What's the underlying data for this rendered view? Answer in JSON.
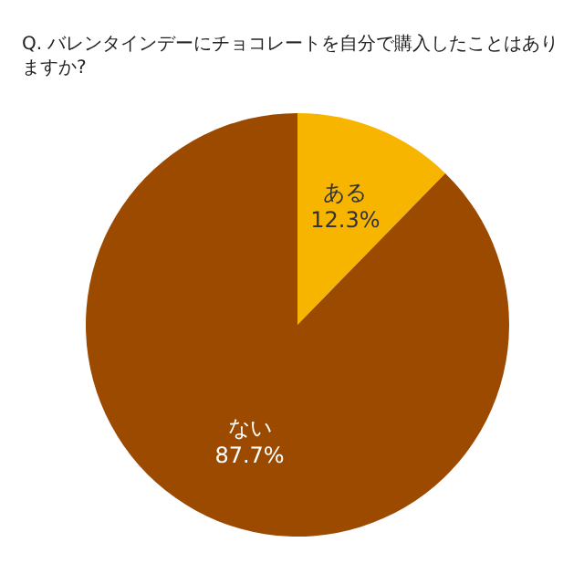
{
  "chart_data": {
    "type": "pie",
    "title": "Q. バレンタインデーにチョコレートを自分で購入したことはありますか?",
    "categories": [
      "ある",
      "ない"
    ],
    "values": [
      12.3,
      87.7
    ],
    "colors": [
      "#f7b500",
      "#9b4a00"
    ],
    "value_labels": [
      "12.3%",
      "87.7%"
    ],
    "legend": false
  }
}
